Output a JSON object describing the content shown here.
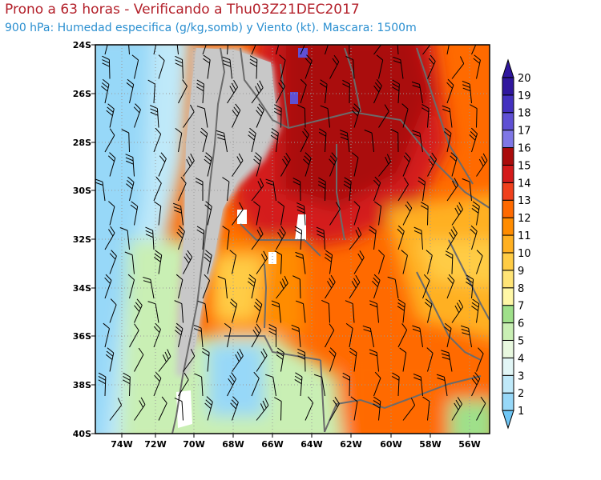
{
  "title": {
    "line1": "Prono a 63 horas - Verificando a Thu03Z21DEC2017",
    "line2": "900 hPa: Humedad especifica (g/kg,somb) y Viento (kt). Mascara: 1500m"
  },
  "axes": {
    "lat_labels": [
      "24S",
      "26S",
      "28S",
      "30S",
      "32S",
      "34S",
      "36S",
      "38S",
      "40S"
    ],
    "lon_labels": [
      "74W",
      "72W",
      "70W",
      "68W",
      "66W",
      "64W",
      "62W",
      "60W",
      "58W",
      "56W"
    ]
  },
  "colorbar": {
    "labels": [
      "1",
      "2",
      "3",
      "4",
      "5",
      "6",
      "7",
      "8",
      "9",
      "10",
      "11",
      "12",
      "13",
      "14",
      "15",
      "16",
      "17",
      "18",
      "19",
      "20"
    ],
    "colors": [
      "#6ec6f5",
      "#97d8f8",
      "#bfe9f9",
      "#e2f6f6",
      "#e8f8df",
      "#c9efb4",
      "#9fe08a",
      "#fff7a6",
      "#ffe476",
      "#ffcc45",
      "#ffb021",
      "#ff8c00",
      "#ff6a00",
      "#f0401c",
      "#d41a1a",
      "#aa0b0b",
      "#7f77e6",
      "#5f50d4",
      "#4330bf",
      "#30179e"
    ]
  },
  "chart_data": {
    "type": "heatmap",
    "variable": "Humedad especifica (g/kg)",
    "level": "900 hPa",
    "lat_range": [
      "40S",
      "24S"
    ],
    "lon_range": [
      "75W",
      "55W"
    ],
    "mask_color": "#c8c8c8",
    "colorbar_min": 1,
    "colorbar_max": 20
  }
}
